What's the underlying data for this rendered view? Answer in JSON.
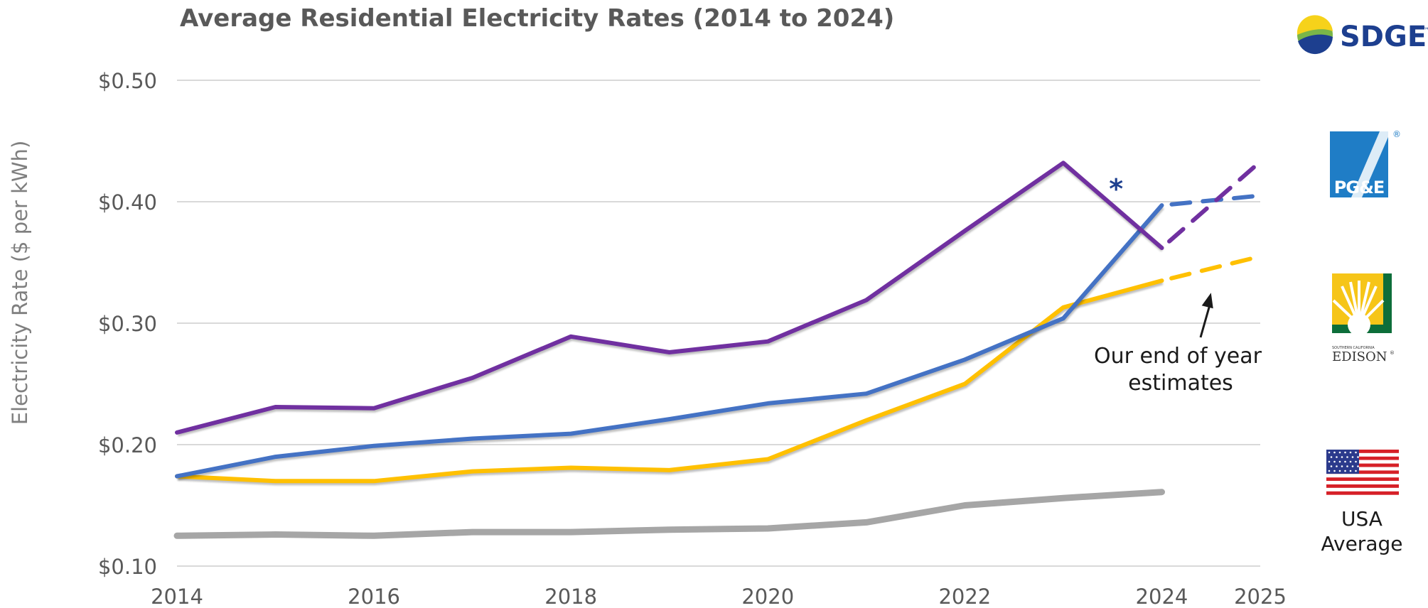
{
  "chart_data": {
    "type": "line",
    "title": "Average Residential Electricity Rates (2014 to 2024)",
    "ylabel": "Electricity Rate ($ per kWh)",
    "xlabel": "",
    "xlim": [
      2014,
      2025
    ],
    "ylim": [
      0.1,
      0.5
    ],
    "xticks": [
      2014,
      2016,
      2018,
      2020,
      2022,
      2024,
      2025
    ],
    "yticks": [
      {
        "value": 0.1,
        "label": "$0.10"
      },
      {
        "value": 0.2,
        "label": "$0.20"
      },
      {
        "value": 0.3,
        "label": "$0.30"
      },
      {
        "value": 0.4,
        "label": "$0.40"
      },
      {
        "value": 0.5,
        "label": "$0.50"
      }
    ],
    "grid": true,
    "legend": "right (logos)",
    "series": [
      {
        "key": "sdge",
        "color": "#7030a0",
        "x": [
          2014,
          2015,
          2016,
          2017,
          2018,
          2019,
          2020,
          2021,
          2022,
          2023,
          2024
        ],
        "y": [
          0.21,
          0.231,
          0.23,
          0.255,
          0.289,
          0.276,
          0.285,
          0.319,
          0.376,
          0.432,
          0.362
        ],
        "estimate_x": [
          2024,
          2025
        ],
        "estimate_y": [
          0.362,
          0.433
        ]
      },
      {
        "key": "pge",
        "color": "#4472c4",
        "x": [
          2014,
          2015,
          2016,
          2017,
          2018,
          2019,
          2020,
          2021,
          2022,
          2023,
          2024
        ],
        "y": [
          0.174,
          0.19,
          0.199,
          0.205,
          0.209,
          0.221,
          0.234,
          0.242,
          0.27,
          0.304,
          0.397
        ],
        "estimate_x": [
          2024,
          2025
        ],
        "estimate_y": [
          0.397,
          0.405
        ]
      },
      {
        "key": "sce",
        "color": "#ffc000",
        "x": [
          2014,
          2015,
          2016,
          2017,
          2018,
          2019,
          2020,
          2021,
          2022,
          2023,
          2024
        ],
        "y": [
          0.174,
          0.17,
          0.17,
          0.178,
          0.181,
          0.179,
          0.188,
          0.22,
          0.25,
          0.313,
          0.335
        ],
        "estimate_x": [
          2024,
          2025
        ],
        "estimate_y": [
          0.335,
          0.355
        ]
      },
      {
        "key": "usa",
        "color": "#a6a6a6",
        "x": [
          2014,
          2015,
          2016,
          2017,
          2018,
          2019,
          2020,
          2021,
          2022,
          2023,
          2024
        ],
        "y": [
          0.125,
          0.126,
          0.125,
          0.128,
          0.128,
          0.13,
          0.131,
          0.136,
          0.15,
          0.156,
          0.161
        ]
      }
    ],
    "annotations": {
      "asterisk": {
        "text": "*",
        "x": 2023.5,
        "y": 0.41,
        "color": "#1d3f8f"
      },
      "estimate_note_line1": "Our end of year",
      "estimate_note_line2": "estimates",
      "arrow_to": {
        "x": 2024.5,
        "y": 0.325
      }
    }
  },
  "legend": {
    "sdge_logo_text": "SDGE",
    "sdge_tm": "™",
    "pge_logo_text": "PG&E",
    "pge_registered": "®",
    "sce_small_text": "SOUTHERN CALIFORNIA",
    "sce_logo_text": "EDISON",
    "sce_registered": "®",
    "usa_label_line1": "USA",
    "usa_label_line2": "Average"
  },
  "colors": {
    "sdge_blue": "#1d3f8f",
    "sdge_green": "#7ab648",
    "sdge_yellow": "#f6d21a",
    "pge_blue": "#1f7dc6",
    "sce_green": "#0d6e3a",
    "sce_yellow": "#f6c518",
    "flag_red": "#d62027",
    "flag_blue": "#2b3a8c",
    "gridline": "#d9d9d9"
  }
}
